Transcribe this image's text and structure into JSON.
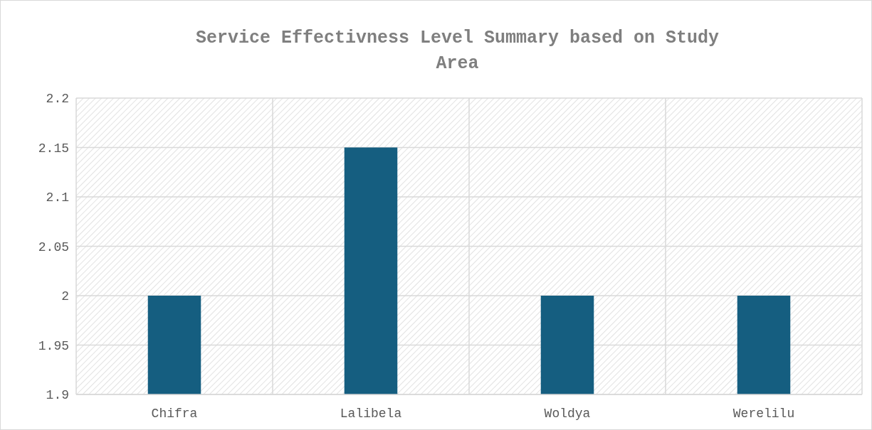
{
  "chart_data": {
    "type": "bar",
    "title": "Service Effectivness Level Summary based on Study Area",
    "categories": [
      "Chifra",
      "Lalibela",
      "Woldya",
      "Werelilu"
    ],
    "values": [
      2,
      2.15,
      2,
      2
    ],
    "color": "#155e80",
    "ylim": [
      1.9,
      2.2
    ],
    "yticks": [
      1.9,
      1.95,
      2,
      2.05,
      2.1,
      2.15,
      2.2
    ],
    "grid": true
  }
}
